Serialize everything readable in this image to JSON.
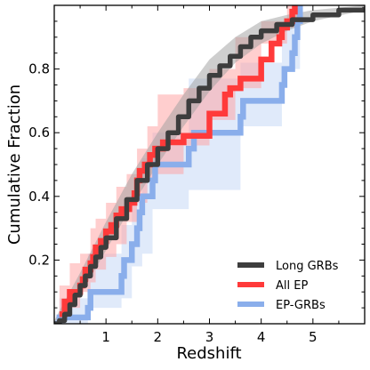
{
  "chart_data": {
    "type": "line",
    "subtype": "empirical-cumulative-distribution (step)",
    "title": "",
    "xlabel": "Redshift",
    "ylabel": "Cumulative Fraction",
    "xlim": [
      0.0,
      6.0
    ],
    "ylim": [
      0.0,
      1.0
    ],
    "xticks": [
      1,
      2,
      3,
      4,
      5
    ],
    "xtick_labels": [
      "1",
      "2",
      "3",
      "4",
      "5"
    ],
    "yticks": [
      0.2,
      0.4,
      0.6,
      0.8
    ],
    "ytick_labels": [
      "0.2",
      "0.4",
      "0.6",
      "0.8"
    ],
    "grid": false,
    "legend_position": "bottom-right",
    "series": [
      {
        "name": "Long GRBs",
        "color": "#3d3d3d",
        "band_color": "#9e9e9e",
        "steps": [
          [
            0.0,
            0.0
          ],
          [
            0.1,
            0.01
          ],
          [
            0.2,
            0.03
          ],
          [
            0.3,
            0.06
          ],
          [
            0.4,
            0.09
          ],
          [
            0.5,
            0.12
          ],
          [
            0.6,
            0.15
          ],
          [
            0.7,
            0.18
          ],
          [
            0.8,
            0.21
          ],
          [
            0.9,
            0.24
          ],
          [
            1.0,
            0.27
          ],
          [
            1.2,
            0.33
          ],
          [
            1.4,
            0.39
          ],
          [
            1.6,
            0.45
          ],
          [
            1.8,
            0.5
          ],
          [
            2.0,
            0.55
          ],
          [
            2.2,
            0.6
          ],
          [
            2.4,
            0.65
          ],
          [
            2.6,
            0.7
          ],
          [
            2.8,
            0.74
          ],
          [
            3.0,
            0.78
          ],
          [
            3.2,
            0.81
          ],
          [
            3.4,
            0.84
          ],
          [
            3.6,
            0.87
          ],
          [
            3.8,
            0.9
          ],
          [
            4.0,
            0.92
          ],
          [
            4.3,
            0.94
          ],
          [
            4.6,
            0.955
          ],
          [
            5.0,
            0.97
          ],
          [
            5.5,
            0.985
          ],
          [
            6.0,
            0.995
          ]
        ],
        "band_lower": [
          [
            0.0,
            0.0
          ],
          [
            0.5,
            0.09
          ],
          [
            1.0,
            0.23
          ],
          [
            1.5,
            0.37
          ],
          [
            2.0,
            0.5
          ],
          [
            2.5,
            0.62
          ],
          [
            3.0,
            0.73
          ],
          [
            3.5,
            0.82
          ],
          [
            4.0,
            0.88
          ],
          [
            4.5,
            0.92
          ],
          [
            5.0,
            0.95
          ],
          [
            6.0,
            0.985
          ]
        ],
        "band_upper": [
          [
            0.0,
            0.01
          ],
          [
            0.5,
            0.16
          ],
          [
            1.0,
            0.32
          ],
          [
            1.5,
            0.47
          ],
          [
            2.0,
            0.6
          ],
          [
            2.5,
            0.72
          ],
          [
            3.0,
            0.83
          ],
          [
            3.5,
            0.9
          ],
          [
            4.0,
            0.95
          ],
          [
            4.5,
            0.97
          ],
          [
            5.0,
            0.985
          ],
          [
            6.0,
            1.0
          ]
        ]
      },
      {
        "name": "All EP",
        "color": "#ff3a3a",
        "band_color": "#ff9d9d",
        "steps": [
          [
            0.1,
            0.03
          ],
          [
            0.2,
            0.07
          ],
          [
            0.3,
            0.1
          ],
          [
            0.5,
            0.12
          ],
          [
            0.55,
            0.14
          ],
          [
            0.6,
            0.17
          ],
          [
            0.7,
            0.19
          ],
          [
            0.75,
            0.21
          ],
          [
            0.8,
            0.24
          ],
          [
            0.9,
            0.26
          ],
          [
            1.0,
            0.29
          ],
          [
            1.1,
            0.31
          ],
          [
            1.2,
            0.34
          ],
          [
            1.3,
            0.36
          ],
          [
            1.45,
            0.38
          ],
          [
            1.55,
            0.41
          ],
          [
            1.6,
            0.45
          ],
          [
            1.65,
            0.48
          ],
          [
            1.75,
            0.5
          ],
          [
            1.85,
            0.53
          ],
          [
            1.95,
            0.55
          ],
          [
            2.1,
            0.57
          ],
          [
            2.5,
            0.59
          ],
          [
            3.0,
            0.66
          ],
          [
            3.3,
            0.72
          ],
          [
            3.4,
            0.74
          ],
          [
            3.6,
            0.77
          ],
          [
            4.0,
            0.83
          ],
          [
            4.2,
            0.88
          ],
          [
            4.35,
            0.9
          ],
          [
            4.4,
            0.93
          ],
          [
            4.5,
            0.95
          ],
          [
            4.6,
            0.98
          ],
          [
            4.65,
            1.0
          ]
        ],
        "band": [
          [
            0.1,
            0.0,
            0.12
          ],
          [
            0.3,
            0.03,
            0.19
          ],
          [
            0.5,
            0.05,
            0.22
          ],
          [
            0.7,
            0.1,
            0.3
          ],
          [
            0.8,
            0.13,
            0.33
          ],
          [
            1.0,
            0.17,
            0.38
          ],
          [
            1.2,
            0.21,
            0.43
          ],
          [
            1.4,
            0.25,
            0.47
          ],
          [
            1.6,
            0.32,
            0.55
          ],
          [
            1.8,
            0.38,
            0.62
          ],
          [
            2.0,
            0.45,
            0.72
          ],
          [
            2.5,
            0.47,
            0.74
          ],
          [
            3.0,
            0.56,
            0.8
          ],
          [
            3.5,
            0.64,
            0.9
          ],
          [
            4.0,
            0.74,
            0.95
          ],
          [
            4.5,
            0.88,
            1.0
          ],
          [
            4.7,
            0.93,
            1.0
          ]
        ]
      },
      {
        "name": "EP-GRBs",
        "color": "#8aaeeb",
        "band_color": "#d6e3f8",
        "steps": [
          [
            0.0,
            0.0
          ],
          [
            0.1,
            0.02
          ],
          [
            0.65,
            0.05
          ],
          [
            0.7,
            0.1
          ],
          [
            1.3,
            0.15
          ],
          [
            1.35,
            0.2
          ],
          [
            1.5,
            0.25
          ],
          [
            1.6,
            0.3
          ],
          [
            1.65,
            0.35
          ],
          [
            1.7,
            0.4
          ],
          [
            1.9,
            0.45
          ],
          [
            1.95,
            0.5
          ],
          [
            2.6,
            0.55
          ],
          [
            2.7,
            0.6
          ],
          [
            3.6,
            0.65
          ],
          [
            3.65,
            0.7
          ],
          [
            4.4,
            0.75
          ],
          [
            4.45,
            0.8
          ],
          [
            4.6,
            0.85
          ],
          [
            4.65,
            0.9
          ],
          [
            4.7,
            0.95
          ],
          [
            4.75,
            1.0
          ]
        ],
        "band": [
          [
            0.1,
            0.0,
            0.08
          ],
          [
            0.65,
            0.0,
            0.22
          ],
          [
            1.3,
            0.05,
            0.31
          ],
          [
            1.5,
            0.08,
            0.38
          ],
          [
            1.7,
            0.18,
            0.52
          ],
          [
            1.9,
            0.22,
            0.6
          ],
          [
            2.6,
            0.36,
            0.77
          ],
          [
            3.6,
            0.42,
            0.82
          ],
          [
            4.4,
            0.62,
            0.93
          ],
          [
            4.75,
            0.8,
            1.0
          ]
        ]
      }
    ]
  }
}
